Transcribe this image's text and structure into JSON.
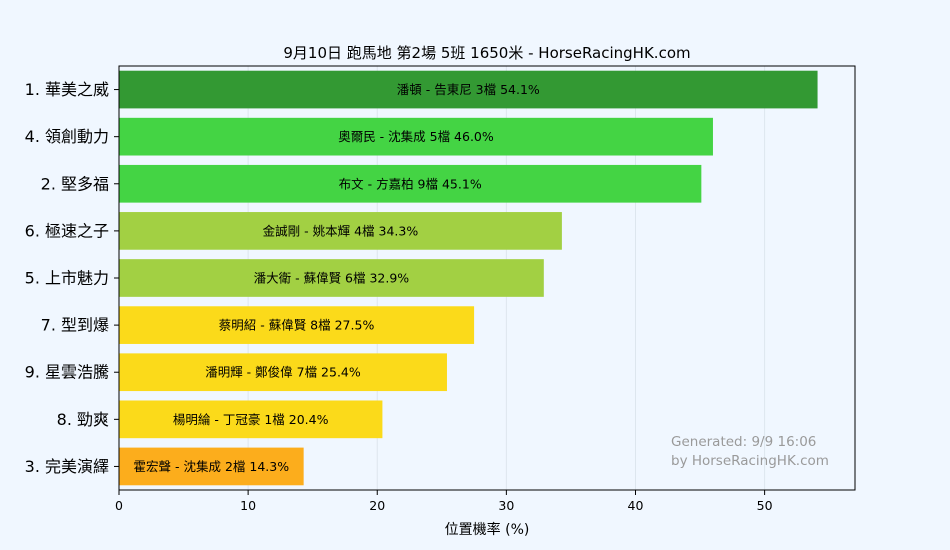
{
  "chart_data": {
    "type": "bar",
    "orientation": "horizontal",
    "title": "9月10日  跑馬地  第2場  5班  1650米 - HorseRacingHK.com",
    "xlabel": "位置機率 (%)",
    "ylabel": "",
    "xlim": [
      0,
      57
    ],
    "xticks": [
      0,
      10,
      20,
      30,
      40,
      50
    ],
    "grid": "vertical",
    "categories": [
      "1. 華美之威",
      "4. 領創動力",
      "2. 堅多福",
      "6. 極速之子",
      "5. 上市魅力",
      "7. 型到爆",
      "9. 星雲浩騰",
      "8. 勁爽",
      "3. 完美演繹"
    ],
    "values": [
      54.1,
      46.0,
      45.1,
      34.3,
      32.9,
      27.5,
      25.4,
      20.4,
      14.3
    ],
    "bar_labels": [
      "潘頓 - 告東尼 3檔  54.1%",
      "奧爾民 - 沈集成 5檔  46.0%",
      "布文 - 方嘉柏 9檔  45.1%",
      "金誠剛 - 姚本輝 4檔  34.3%",
      "潘大衛 - 蘇偉賢 6檔  32.9%",
      "蔡明紹 - 蘇偉賢 8檔  27.5%",
      "潘明輝 - 鄭俊偉 7檔  25.4%",
      "楊明綸 - 丁冠豪 1檔  20.4%",
      "霍宏聲 - 沈集成 2檔  14.3%"
    ],
    "colors": [
      "#339933",
      "#44d444",
      "#44d444",
      "#a2d043",
      "#a2d043",
      "#fbda1a",
      "#fbda1a",
      "#fbda1a",
      "#fcad1c"
    ]
  },
  "watermark": {
    "line1": "Generated: 9/9 16:06",
    "line2": "by HorseRacingHK.com"
  },
  "colors": {
    "background": "#f0f7ff",
    "plot_background": "#f0f7ff",
    "grid": "#dde6ee"
  }
}
